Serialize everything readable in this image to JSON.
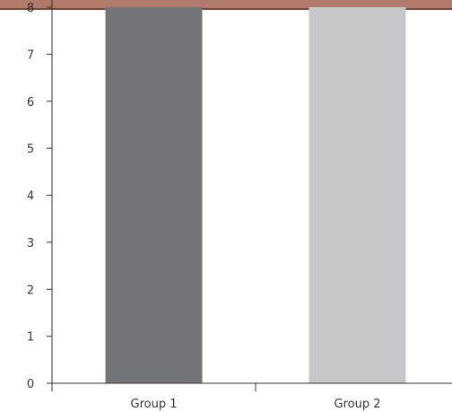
{
  "colors": {
    "top_band": "#b07b6b",
    "top_band_edge": "#6f4b40",
    "axis": "#333333",
    "bar_group1": "#747578",
    "bar_group2": "#c6c7c9"
  },
  "chart_data": {
    "type": "bar",
    "categories": [
      "Group 1",
      "Group 2"
    ],
    "values": [
      8,
      8
    ],
    "bar_colors": [
      "#747578",
      "#c6c7c9"
    ],
    "y_ticks": [
      "0",
      "1",
      "2",
      "3",
      "4",
      "5",
      "6",
      "7",
      "8"
    ],
    "ylim": [
      0,
      8
    ],
    "title": "",
    "xlabel": "",
    "ylabel": "",
    "grid": false,
    "legend": "none"
  }
}
